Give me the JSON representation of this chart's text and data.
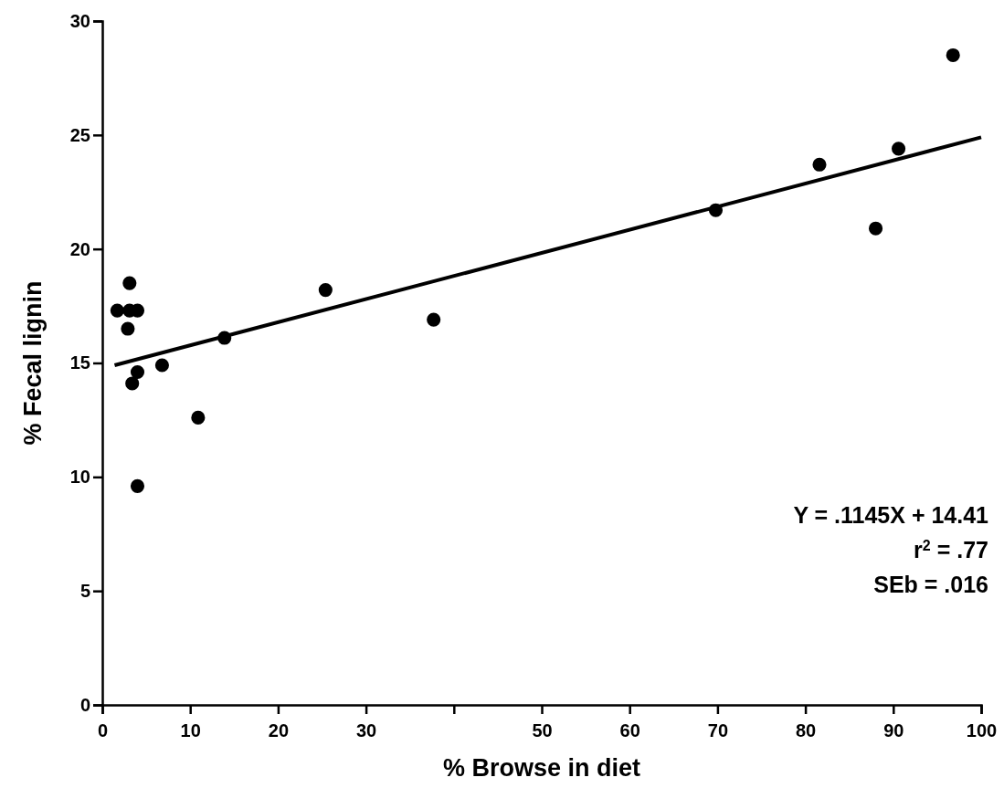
{
  "chart_data": {
    "type": "scatter",
    "xlabel": "% Browse in diet",
    "ylabel": "% Fecal lignin",
    "xlim": [
      0,
      100
    ],
    "ylim": [
      0,
      30
    ],
    "xticks": [
      0,
      10,
      20,
      30,
      {
        "value": 40,
        "label": null
      },
      50,
      60,
      70,
      80,
      90,
      100
    ],
    "yticks": [
      0,
      5,
      10,
      15,
      20,
      25,
      30
    ],
    "grid": false,
    "marker": "circle",
    "series": [
      {
        "color": "#000000",
        "x": [
          1.7,
          3.1,
          3.1,
          4.0,
          2.9,
          4.0,
          3.4,
          6.8,
          10.9,
          4.0,
          13.9,
          25.4,
          37.7,
          69.8,
          81.6,
          88.0,
          90.6,
          96.8
        ],
        "values": [
          17.3,
          18.5,
          17.3,
          17.3,
          16.5,
          14.6,
          14.1,
          14.9,
          12.6,
          9.6,
          16.1,
          18.2,
          16.9,
          21.7,
          23.7,
          20.9,
          24.4,
          28.5
        ]
      },
      {
        "type": "line",
        "color": "#000000",
        "x": [
          1.4,
          100
        ],
        "values": [
          14.9,
          24.9
        ],
        "line_style": "solid",
        "marker": "none"
      }
    ],
    "annotations": [
      "Y = .1145X + 14.41",
      "r$^{2}$ = .77",
      "SEb = .016"
    ]
  }
}
